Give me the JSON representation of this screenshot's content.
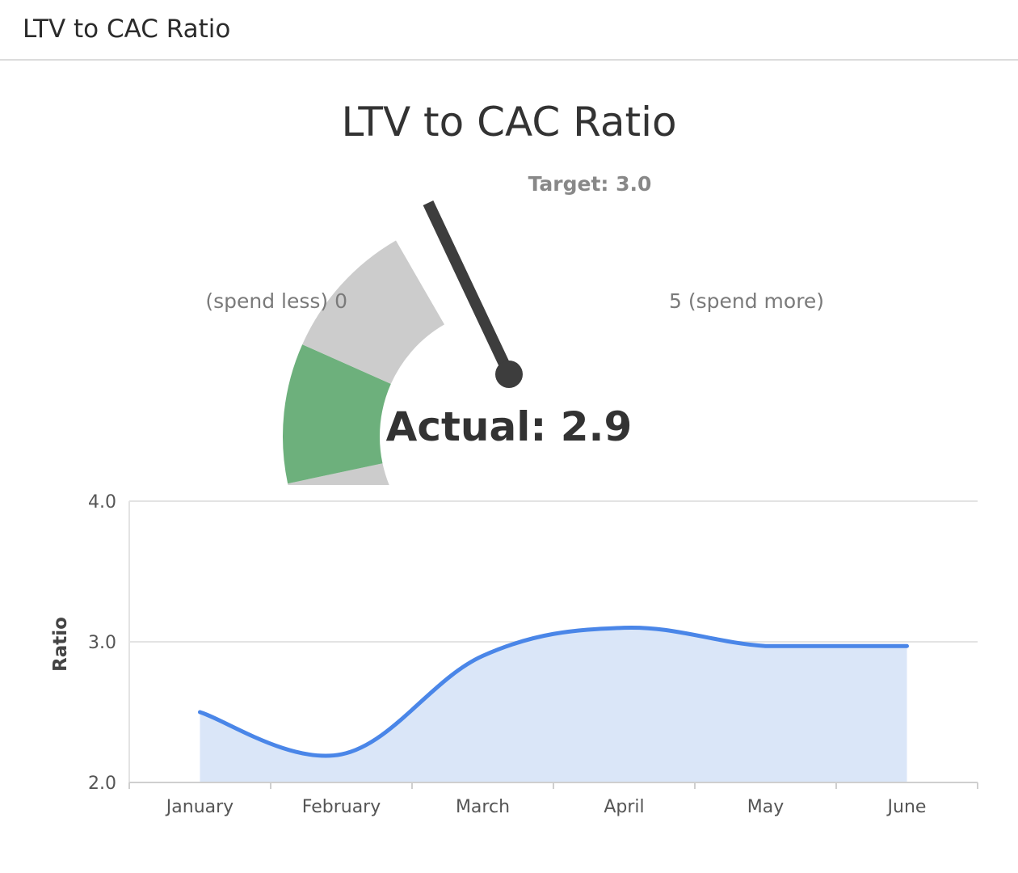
{
  "header": {
    "title": "LTV to CAC Ratio"
  },
  "widget": {
    "title": "LTV to CAC Ratio"
  },
  "gauge": {
    "min": 0,
    "max": 5,
    "min_label": "(spend less) 0",
    "max_label": "5 (spend more)",
    "target": 3.0,
    "target_label": "Target: 3.0",
    "actual": 2.9,
    "actual_label": "Actual: 2.9",
    "bands": [
      {
        "from": 0,
        "to": 2,
        "color": "#cccccc"
      },
      {
        "from": 2,
        "to": 3.5,
        "color": "#6db07c"
      },
      {
        "from": 3.5,
        "to": 5,
        "color": "#cccccc"
      }
    ],
    "needle_color": "#3d3d3d"
  },
  "chart_data": {
    "type": "area",
    "categories": [
      "January",
      "February",
      "March",
      "April",
      "May",
      "June"
    ],
    "series": [
      {
        "values": [
          2.5,
          2.2,
          2.9,
          3.1,
          2.97,
          2.97
        ],
        "color": "#4a86e8",
        "fill": "#dae6f8"
      }
    ],
    "title": "",
    "xlabel": "",
    "ylabel": "Ratio",
    "ylim": [
      2.0,
      4.0
    ],
    "yticks": [
      "2.0",
      "3.0",
      "4.0"
    ],
    "grid": true,
    "legend": "none"
  }
}
